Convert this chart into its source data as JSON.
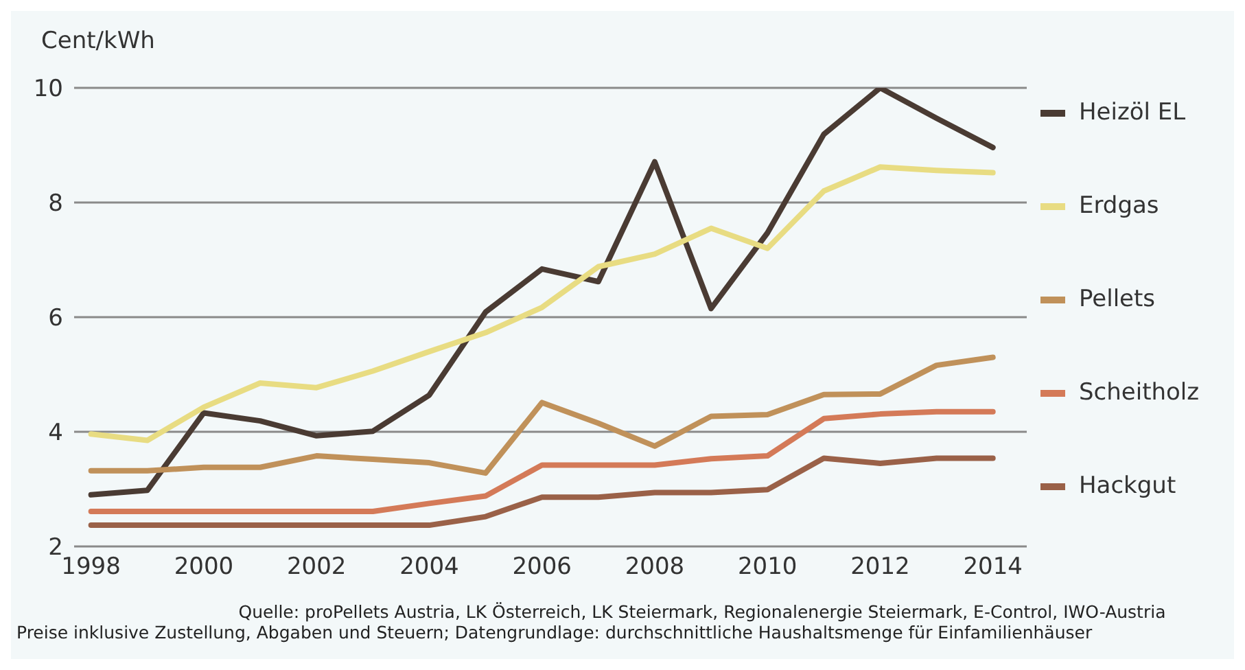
{
  "chart_data": {
    "type": "line",
    "ylabel": "Cent/kWh",
    "x": [
      1998,
      1999,
      2000,
      2001,
      2002,
      2003,
      2004,
      2005,
      2006,
      2007,
      2008,
      2009,
      2010,
      2011,
      2012,
      2013,
      2014
    ],
    "series": [
      {
        "name": "Heizöl EL",
        "color": "#4a3b33",
        "values": [
          2.9,
          2.98,
          4.33,
          4.19,
          3.93,
          4.01,
          4.64,
          6.09,
          6.84,
          6.62,
          8.71,
          6.15,
          7.47,
          9.19,
          10.0,
          9.47,
          8.96
        ]
      },
      {
        "name": "Erdgas",
        "color": "#e8dc82",
        "values": [
          3.96,
          3.85,
          4.43,
          4.85,
          4.77,
          5.06,
          5.4,
          5.73,
          6.17,
          6.88,
          7.1,
          7.55,
          7.2,
          8.2,
          8.62,
          8.56,
          8.52
        ]
      },
      {
        "name": "Pellets",
        "color": "#c0915a",
        "values": [
          3.32,
          3.32,
          3.38,
          3.38,
          3.58,
          3.52,
          3.46,
          3.28,
          4.51,
          4.15,
          3.75,
          4.27,
          4.3,
          4.65,
          4.66,
          5.16,
          5.3
        ]
      },
      {
        "name": "Scheitholz",
        "color": "#d47a58",
        "values": [
          2.61,
          2.61,
          2.61,
          2.61,
          2.61,
          2.61,
          2.75,
          2.88,
          3.42,
          3.42,
          3.42,
          3.53,
          3.58,
          4.23,
          4.31,
          4.35,
          4.35
        ]
      },
      {
        "name": "Hackgut",
        "color": "#9a6148",
        "values": [
          2.37,
          2.37,
          2.37,
          2.37,
          2.37,
          2.37,
          2.37,
          2.52,
          2.86,
          2.86,
          2.94,
          2.94,
          2.99,
          3.54,
          3.45,
          3.54,
          3.54
        ]
      }
    ],
    "xlim": [
      1997.7,
      2014.6
    ],
    "xticks": [
      1998,
      2000,
      2002,
      2004,
      2006,
      2008,
      2010,
      2012,
      2014
    ],
    "ylim": [
      2,
      10
    ],
    "yticks": [
      2,
      4,
      6,
      8,
      10
    ],
    "grid": "y",
    "legend": "right",
    "marker": "none",
    "line_style": "solid",
    "annotations": [
      "Quelle: proPellets Austria, LK Österreich, LK Steiermark, Regionalenergie Steiermark, E-Control, IWO-Austria",
      "Preise inklusive Zustellung, Abgaben und Steuern; Datengrundlage: durchschnittliche Haushaltsmenge für Einfamilienhäuser"
    ]
  }
}
